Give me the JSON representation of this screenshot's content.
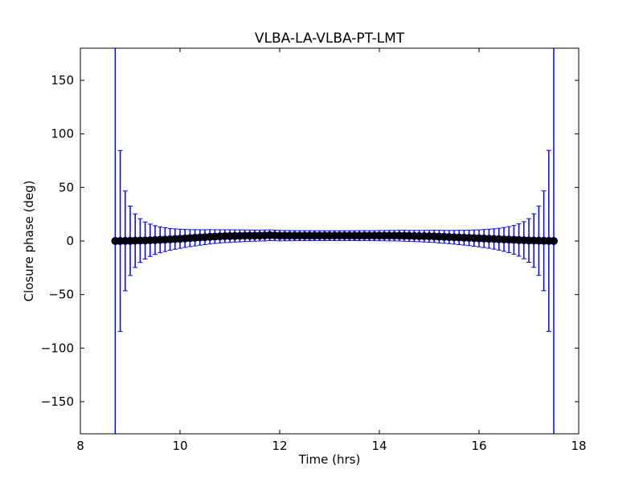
{
  "chart_data": {
    "type": "scatter",
    "title": "VLBA-LA-VLBA-PT-LMT",
    "xlabel": "Time (hrs)",
    "ylabel": "Closure phase (deg)",
    "xlim": [
      8,
      18
    ],
    "ylim": [
      -180,
      180
    ],
    "xticks": [
      8,
      10,
      12,
      14,
      16,
      18
    ],
    "yticks": [
      -150,
      -100,
      -50,
      0,
      50,
      100,
      150
    ],
    "ytick_labels": [
      "−150",
      "−100",
      "−50",
      "0",
      "50",
      "100",
      "150"
    ],
    "grid": false,
    "series": [
      {
        "name": "closure phase",
        "marker_color": "#000000",
        "errorbar_color": "#0000ff",
        "x": [
          8.7,
          8.8,
          8.9,
          9.0,
          9.1,
          9.2,
          9.3,
          9.4,
          9.5,
          9.6,
          9.7,
          9.8,
          9.9,
          10.0,
          10.1,
          10.2,
          10.3,
          10.4,
          10.5,
          10.6,
          10.7,
          10.8,
          10.9,
          11.0,
          11.1,
          11.2,
          11.3,
          11.4,
          11.5,
          11.6,
          11.7,
          11.8,
          11.9,
          12.0,
          12.1,
          12.2,
          12.3,
          12.4,
          12.5,
          12.6,
          12.7,
          12.8,
          12.9,
          13.0,
          13.1,
          13.2,
          13.3,
          13.4,
          13.5,
          13.6,
          13.7,
          13.8,
          13.9,
          14.0,
          14.1,
          14.2,
          14.3,
          14.4,
          14.5,
          14.6,
          14.7,
          14.8,
          14.9,
          15.0,
          15.1,
          15.2,
          15.3,
          15.4,
          15.5,
          15.6,
          15.7,
          15.8,
          15.9,
          16.0,
          16.1,
          16.2,
          16.3,
          16.4,
          16.5,
          16.6,
          16.7,
          16.8,
          16.9,
          17.0,
          17.1,
          17.2,
          17.3,
          17.4,
          17.5
        ],
        "y": [
          0,
          0,
          0.1,
          0.2,
          0.3,
          0.4,
          0.5,
          0.7,
          0.9,
          1.1,
          1.3,
          1.5,
          1.8,
          2.1,
          2.4,
          2.7,
          3.0,
          3.3,
          3.6,
          3.9,
          4.1,
          4.3,
          4.5,
          4.6,
          4.7,
          4.8,
          4.9,
          5.0,
          5.0,
          5.1,
          5.2,
          5.4,
          5.2,
          5.0,
          5.0,
          5.0,
          5.0,
          5.0,
          5.0,
          5.0,
          5.0,
          5.0,
          5.0,
          5.0,
          5.0,
          5.0,
          5.0,
          5.0,
          5.0,
          5.0,
          5.0,
          5.0,
          5.0,
          5.0,
          5.0,
          5.0,
          5.0,
          5.0,
          4.9,
          4.8,
          4.7,
          4.6,
          4.5,
          4.4,
          4.3,
          4.1,
          3.9,
          3.7,
          3.5,
          3.3,
          3.1,
          2.9,
          2.7,
          2.5,
          2.3,
          2.1,
          1.9,
          1.7,
          1.5,
          1.3,
          1.1,
          0.9,
          0.7,
          0.5,
          0.4,
          0.3,
          0.2,
          0.1,
          0.0
        ],
        "yerr": [
          501,
          84.5,
          46.6,
          32.4,
          25.0,
          20.4,
          17.3,
          15.1,
          13.4,
          12.1,
          11.1,
          10.2,
          9.5,
          8.9,
          8.4,
          7.9,
          7.6,
          7.2,
          6.9,
          6.7,
          6.4,
          6.2,
          6.0,
          5.9,
          5.7,
          5.6,
          5.4,
          5.3,
          5.2,
          5.1,
          5.1,
          5.0,
          4.9,
          4.9,
          4.8,
          4.8,
          4.7,
          4.7,
          4.7,
          4.7,
          4.6,
          4.6,
          4.6,
          4.6,
          4.6,
          4.6,
          4.6,
          4.6,
          4.6,
          4.7,
          4.7,
          4.7,
          4.7,
          4.8,
          4.8,
          4.9,
          4.9,
          5.0,
          5.1,
          5.1,
          5.2,
          5.3,
          5.4,
          5.6,
          5.7,
          5.9,
          6.0,
          6.2,
          6.4,
          6.7,
          6.9,
          7.2,
          7.6,
          7.9,
          8.4,
          8.9,
          9.5,
          10.2,
          11.1,
          12.1,
          13.4,
          15.1,
          17.3,
          20.4,
          25.0,
          32.4,
          46.6,
          84.5,
          501
        ]
      }
    ]
  }
}
